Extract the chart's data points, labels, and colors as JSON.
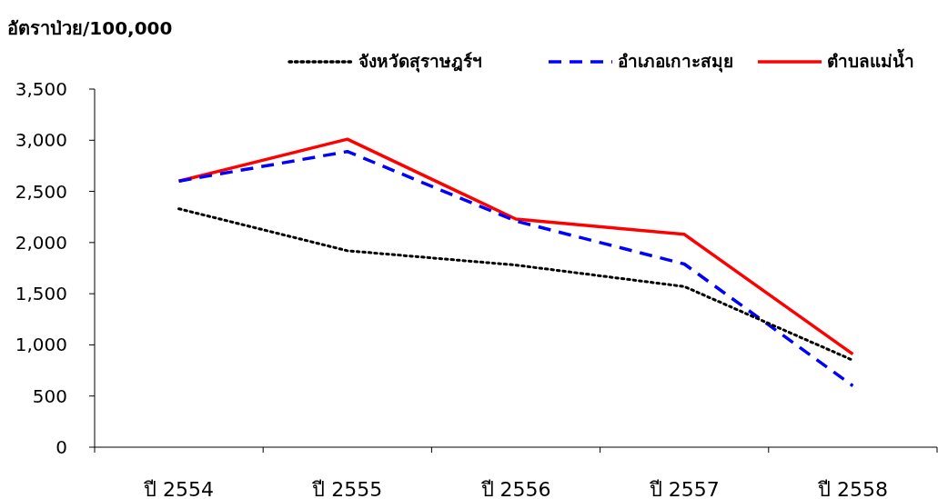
{
  "chart_data": {
    "type": "line",
    "ylabel": "อัตราป่วย/100,000",
    "categories": [
      "ปี 2554",
      "ปี 2555",
      "ปี 2556",
      "ปี 2557",
      "ปี 2558"
    ],
    "series": [
      {
        "name": "จังหวัดสุราษฎร์ฯ",
        "color": "#000000",
        "line_style": "dotted",
        "values": [
          2330,
          1920,
          1780,
          1570,
          850
        ]
      },
      {
        "name": "อำเภอเกาะสมุย",
        "color": "#0000ff",
        "line_style": "dashed",
        "values": [
          2600,
          2890,
          2210,
          1790,
          600
        ]
      },
      {
        "name": "ตำบลแม่น้ำ",
        "color": "#ff0000",
        "line_style": "solid",
        "values": [
          2600,
          3010,
          2230,
          2080,
          910
        ]
      }
    ],
    "ylim": [
      0,
      3500
    ],
    "yticks": [
      {
        "value": 0,
        "label": "0"
      },
      {
        "value": 500,
        "label": "500"
      },
      {
        "value": 1000,
        "label": "1,000"
      },
      {
        "value": 1500,
        "label": "1,500"
      },
      {
        "value": 2000,
        "label": "2,000"
      },
      {
        "value": 2500,
        "label": "2,500"
      },
      {
        "value": 3000,
        "label": "3,000"
      },
      {
        "value": 3500,
        "label": "3,500"
      }
    ],
    "grid": false,
    "legend": "top right",
    "marker": "none"
  }
}
